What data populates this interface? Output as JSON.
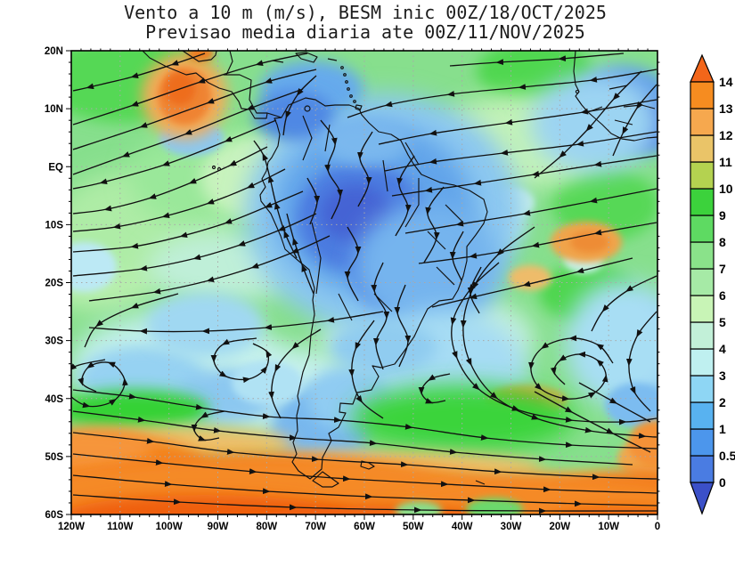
{
  "title": {
    "line1": "Vento a 10 m (m/s), BESM inic 00Z/18/OCT/2025",
    "line2": "Previsao media diaria ate 00Z/11/NOV/2025"
  },
  "chart_data": {
    "type": "heatmap",
    "subtype": "filled-contour wind speed map with overlaid streamlines",
    "title": "Vento a 10 m (m/s), BESM inic 00Z/18/OCT/2025",
    "subtitle": "Previsao media diaria ate 00Z/11/NOV/2025",
    "units": "m/s",
    "region": "South America and adjacent oceans",
    "xlabel": "",
    "ylabel": "",
    "xlim_deg_lon": [
      -120,
      0
    ],
    "ylim_deg_lat": [
      -60,
      20
    ],
    "x_ticks": [
      "120W",
      "110W",
      "100W",
      "90W",
      "80W",
      "70W",
      "60W",
      "50W",
      "40W",
      "30W",
      "20W",
      "10W",
      "0"
    ],
    "x_tick_lons": [
      -120,
      -110,
      -100,
      -90,
      -80,
      -70,
      -60,
      -50,
      -40,
      -30,
      -20,
      -10,
      0
    ],
    "y_ticks": [
      "20N",
      "10N",
      "EQ",
      "10S",
      "20S",
      "30S",
      "40S",
      "50S",
      "60S"
    ],
    "y_tick_lats": [
      20,
      10,
      0,
      -10,
      -20,
      -30,
      -40,
      -50,
      -60
    ],
    "grid": "dotted gray at every 10 degrees",
    "colorbar": {
      "position": "right",
      "levels": [
        "0",
        "0.5",
        "1",
        "2",
        "3",
        "4",
        "5",
        "6",
        "7",
        "8",
        "9",
        "10",
        "11",
        "12",
        "13",
        "14"
      ],
      "segment_colors": [
        "#4a7ce2",
        "#4c96ec",
        "#58b2f0",
        "#8ed6f4",
        "#bff0f0",
        "#c2f0d8",
        "#c8f4b6",
        "#a6eaa6",
        "#8ae28a",
        "#5eda62",
        "#3cd23c",
        "#b4d250",
        "#eac468",
        "#f6a84e",
        "#f68c20"
      ],
      "below_min_color": "#3b50c8",
      "above_max_color": "#f3661a"
    },
    "streamline_color": "#111111",
    "features": [
      "calm winds 0-3 m/s (blue) over Amazon basin, central Brazil and west Africa near the NE corner",
      "moderate trade winds 6-9 m/s (green) over tropical Pacific and Atlantic converging toward the continent",
      "orange patch ~12-13 m/s near Gulf of Tehuantepec / Papagayo around 100W 12N",
      "orange patches ~10-12 m/s in SE trade winds near 10W 12S and 30W 31S",
      "strong circumpolar westerlies >13 m/s (orange band) south of about 48S",
      "South Atlantic subtropical anticyclone spiral centered near 22W 32S",
      "cyclonic eddies in the South Pacific near 103W 38S, 86W 33S and 78W 45S",
      "northward coastal flow along Peru-Chile coast"
    ]
  },
  "icons": {
    "colorbar_top_arrow": "greater-than-max-arrow",
    "colorbar_bottom_arrow": "less-than-min-arrow"
  }
}
